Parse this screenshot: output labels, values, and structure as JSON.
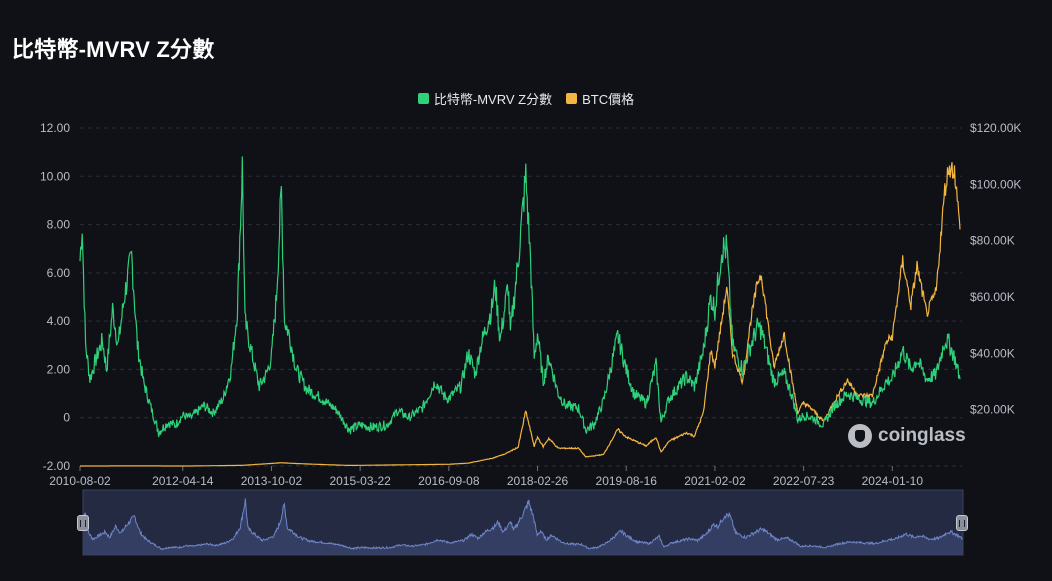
{
  "title": "比特幣-MVRV Z分數",
  "watermark": "coinglass",
  "colors": {
    "background": "#0f1117",
    "mvrv": "#2fd07a",
    "btc": "#f2b541",
    "grid": "#2a2e37",
    "navigator_fill": "#2c3657",
    "navigator_line": "#6f85c9"
  },
  "chart_data": {
    "type": "line",
    "title": "比特幣-MVRV Z分數",
    "legend_position": "top-center",
    "grid": true,
    "y_left": {
      "range": [
        -2,
        12
      ],
      "ticks": [
        "12.00",
        "10.00",
        "8.00",
        "6.00",
        "4.00",
        "2.00",
        "0",
        "-2.00"
      ]
    },
    "y_right": {
      "range": [
        0,
        120000
      ],
      "ticks": [
        "$120.00K",
        "$100.00K",
        "$80.00K",
        "$60.00K",
        "$40.00K",
        "$20.00K"
      ]
    },
    "x_ticks": [
      "2010-08-02",
      "2012-04-14",
      "2013-10-02",
      "2015-03-22",
      "2016-09-08",
      "2018-02-26",
      "2019-08-16",
      "2021-02-02",
      "2022-07-23",
      "2024-01-10"
    ],
    "x_range": [
      "2010-08-02",
      "2025-02-22"
    ],
    "series": [
      {
        "name": "比特幣-MVRV Z分數",
        "axis": "left",
        "color": "#2fd07a",
        "points": [
          [
            "2010-08-02",
            6.5
          ],
          [
            "2010-08-15",
            8.0
          ],
          [
            "2010-09-05",
            3.0
          ],
          [
            "2010-10-01",
            1.6
          ],
          [
            "2010-11-10",
            2.5
          ],
          [
            "2010-12-15",
            3.2
          ],
          [
            "2011-01-10",
            2.0
          ],
          [
            "2011-02-15",
            4.5
          ],
          [
            "2011-03-20",
            3.0
          ],
          [
            "2011-05-01",
            5.2
          ],
          [
            "2011-06-10",
            6.7
          ],
          [
            "2011-07-15",
            3.0
          ],
          [
            "2011-08-20",
            1.5
          ],
          [
            "2011-10-01",
            0.5
          ],
          [
            "2011-11-20",
            -0.6
          ],
          [
            "2012-01-15",
            -0.2
          ],
          [
            "2012-03-01",
            -0.3
          ],
          [
            "2012-04-14",
            0.1
          ],
          [
            "2012-06-01",
            0.0
          ],
          [
            "2012-08-20",
            0.5
          ],
          [
            "2012-10-15",
            0.2
          ],
          [
            "2012-12-15",
            0.8
          ],
          [
            "2013-02-01",
            2.0
          ],
          [
            "2013-03-10",
            4.5
          ],
          [
            "2013-04-09",
            10.4
          ],
          [
            "2013-04-25",
            4.0
          ],
          [
            "2013-06-10",
            2.5
          ],
          [
            "2013-07-20",
            1.3
          ],
          [
            "2013-09-01",
            1.8
          ],
          [
            "2013-10-02",
            2.5
          ],
          [
            "2013-11-01",
            5.0
          ],
          [
            "2013-12-01",
            9.4
          ],
          [
            "2013-12-20",
            4.0
          ],
          [
            "2014-01-15",
            3.5
          ],
          [
            "2014-03-01",
            2.0
          ],
          [
            "2014-05-01",
            1.2
          ],
          [
            "2014-08-01",
            0.8
          ],
          [
            "2014-11-01",
            0.3
          ],
          [
            "2015-01-15",
            -0.5
          ],
          [
            "2015-03-22",
            -0.3
          ],
          [
            "2015-06-01",
            -0.4
          ],
          [
            "2015-09-01",
            -0.3
          ],
          [
            "2015-11-05",
            0.3
          ],
          [
            "2016-01-10",
            0.0
          ],
          [
            "2016-04-01",
            0.4
          ],
          [
            "2016-06-18",
            1.5
          ],
          [
            "2016-08-10",
            0.9
          ],
          [
            "2016-09-08",
            0.8
          ],
          [
            "2016-11-20",
            1.3
          ],
          [
            "2017-01-04",
            2.7
          ],
          [
            "2017-02-15",
            1.8
          ],
          [
            "2017-03-20",
            3.0
          ],
          [
            "2017-05-25",
            4.5
          ],
          [
            "2017-06-15",
            5.5
          ],
          [
            "2017-07-15",
            3.2
          ],
          [
            "2017-09-01",
            5.5
          ],
          [
            "2017-09-15",
            3.5
          ],
          [
            "2017-11-01",
            6.5
          ],
          [
            "2017-12-17",
            10.0
          ],
          [
            "2018-01-15",
            6.5
          ],
          [
            "2018-02-06",
            2.5
          ],
          [
            "2018-02-26",
            3.5
          ],
          [
            "2018-04-01",
            1.5
          ],
          [
            "2018-05-05",
            2.5
          ],
          [
            "2018-07-01",
            1.0
          ],
          [
            "2018-08-15",
            0.5
          ],
          [
            "2018-11-01",
            0.4
          ],
          [
            "2018-12-15",
            -0.5
          ],
          [
            "2019-02-01",
            -0.3
          ],
          [
            "2019-04-01",
            0.7
          ],
          [
            "2019-06-26",
            3.4
          ],
          [
            "2019-08-16",
            2.0
          ],
          [
            "2019-10-01",
            1.0
          ],
          [
            "2019-12-15",
            0.6
          ],
          [
            "2020-02-12",
            2.2
          ],
          [
            "2020-03-13",
            -0.2
          ],
          [
            "2020-05-01",
            0.8
          ],
          [
            "2020-08-15",
            1.7
          ],
          [
            "2020-10-01",
            1.3
          ],
          [
            "2020-11-25",
            2.8
          ],
          [
            "2021-01-08",
            5.0
          ],
          [
            "2021-02-02",
            4.5
          ],
          [
            "2021-03-15",
            7.0
          ],
          [
            "2021-04-15",
            7.0
          ],
          [
            "2021-05-20",
            3.0
          ],
          [
            "2021-07-20",
            2.0
          ],
          [
            "2021-09-07",
            3.0
          ],
          [
            "2021-10-20",
            3.8
          ],
          [
            "2021-11-10",
            3.6
          ],
          [
            "2022-01-24",
            1.5
          ],
          [
            "2022-03-28",
            1.8
          ],
          [
            "2022-05-15",
            0.9
          ],
          [
            "2022-06-18",
            -0.1
          ],
          [
            "2022-07-23",
            0.1
          ],
          [
            "2022-09-15",
            0.0
          ],
          [
            "2022-11-21",
            -0.3
          ],
          [
            "2023-01-25",
            0.5
          ],
          [
            "2023-04-14",
            1.0
          ],
          [
            "2023-06-15",
            0.8
          ],
          [
            "2023-09-11",
            0.6
          ],
          [
            "2023-12-05",
            1.5
          ],
          [
            "2024-01-10",
            1.6
          ],
          [
            "2024-03-13",
            2.8
          ],
          [
            "2024-05-01",
            2.0
          ],
          [
            "2024-06-07",
            2.4
          ],
          [
            "2024-08-05",
            1.6
          ],
          [
            "2024-10-01",
            1.8
          ],
          [
            "2024-11-22",
            3.2
          ],
          [
            "2024-12-17",
            3.1
          ],
          [
            "2025-01-20",
            2.5
          ],
          [
            "2025-02-22",
            1.6
          ]
        ]
      },
      {
        "name": "BTC價格",
        "axis": "right",
        "color": "#f2b541",
        "points": [
          [
            "2010-08-02",
            0.07
          ],
          [
            "2011-06-08",
            30
          ],
          [
            "2012-06-01",
            6
          ],
          [
            "2013-04-09",
            230
          ],
          [
            "2013-11-30",
            1150
          ],
          [
            "2014-06-01",
            650
          ],
          [
            "2015-01-15",
            200
          ],
          [
            "2016-01-01",
            430
          ],
          [
            "2016-09-08",
            620
          ],
          [
            "2017-01-01",
            1000
          ],
          [
            "2017-05-25",
            2700
          ],
          [
            "2017-08-15",
            4300
          ],
          [
            "2017-11-01",
            6700
          ],
          [
            "2017-12-17",
            19500
          ],
          [
            "2018-02-06",
            7000
          ],
          [
            "2018-02-26",
            10300
          ],
          [
            "2018-04-01",
            6900
          ],
          [
            "2018-05-05",
            9800
          ],
          [
            "2018-07-01",
            6300
          ],
          [
            "2018-11-01",
            6300
          ],
          [
            "2018-12-15",
            3200
          ],
          [
            "2019-04-01",
            4100
          ],
          [
            "2019-06-26",
            13000
          ],
          [
            "2019-08-16",
            10300
          ],
          [
            "2019-12-15",
            7100
          ],
          [
            "2020-02-12",
            10300
          ],
          [
            "2020-03-13",
            4900
          ],
          [
            "2020-05-01",
            8800
          ],
          [
            "2020-08-15",
            11800
          ],
          [
            "2020-10-01",
            10600
          ],
          [
            "2020-11-25",
            19000
          ],
          [
            "2021-01-08",
            41000
          ],
          [
            "2021-02-02",
            35500
          ],
          [
            "2021-04-14",
            63500
          ],
          [
            "2021-05-20",
            40000
          ],
          [
            "2021-07-20",
            29800
          ],
          [
            "2021-09-07",
            52000
          ],
          [
            "2021-10-20",
            66000
          ],
          [
            "2021-11-10",
            68000
          ],
          [
            "2022-01-24",
            35000
          ],
          [
            "2022-03-28",
            47000
          ],
          [
            "2022-05-15",
            30000
          ],
          [
            "2022-06-18",
            19000
          ],
          [
            "2022-07-23",
            22500
          ],
          [
            "2022-09-15",
            20000
          ],
          [
            "2022-11-21",
            15800
          ],
          [
            "2023-01-25",
            23000
          ],
          [
            "2023-04-14",
            30500
          ],
          [
            "2023-06-15",
            25000
          ],
          [
            "2023-09-11",
            25000
          ],
          [
            "2023-12-05",
            44000
          ],
          [
            "2024-01-10",
            46000
          ],
          [
            "2024-03-13",
            73000
          ],
          [
            "2024-05-01",
            57000
          ],
          [
            "2024-06-07",
            71000
          ],
          [
            "2024-08-05",
            54000
          ],
          [
            "2024-10-01",
            62000
          ],
          [
            "2024-11-22",
            98000
          ],
          [
            "2024-12-17",
            106000
          ],
          [
            "2025-01-20",
            105000
          ],
          [
            "2025-02-22",
            84000
          ]
        ]
      }
    ]
  }
}
